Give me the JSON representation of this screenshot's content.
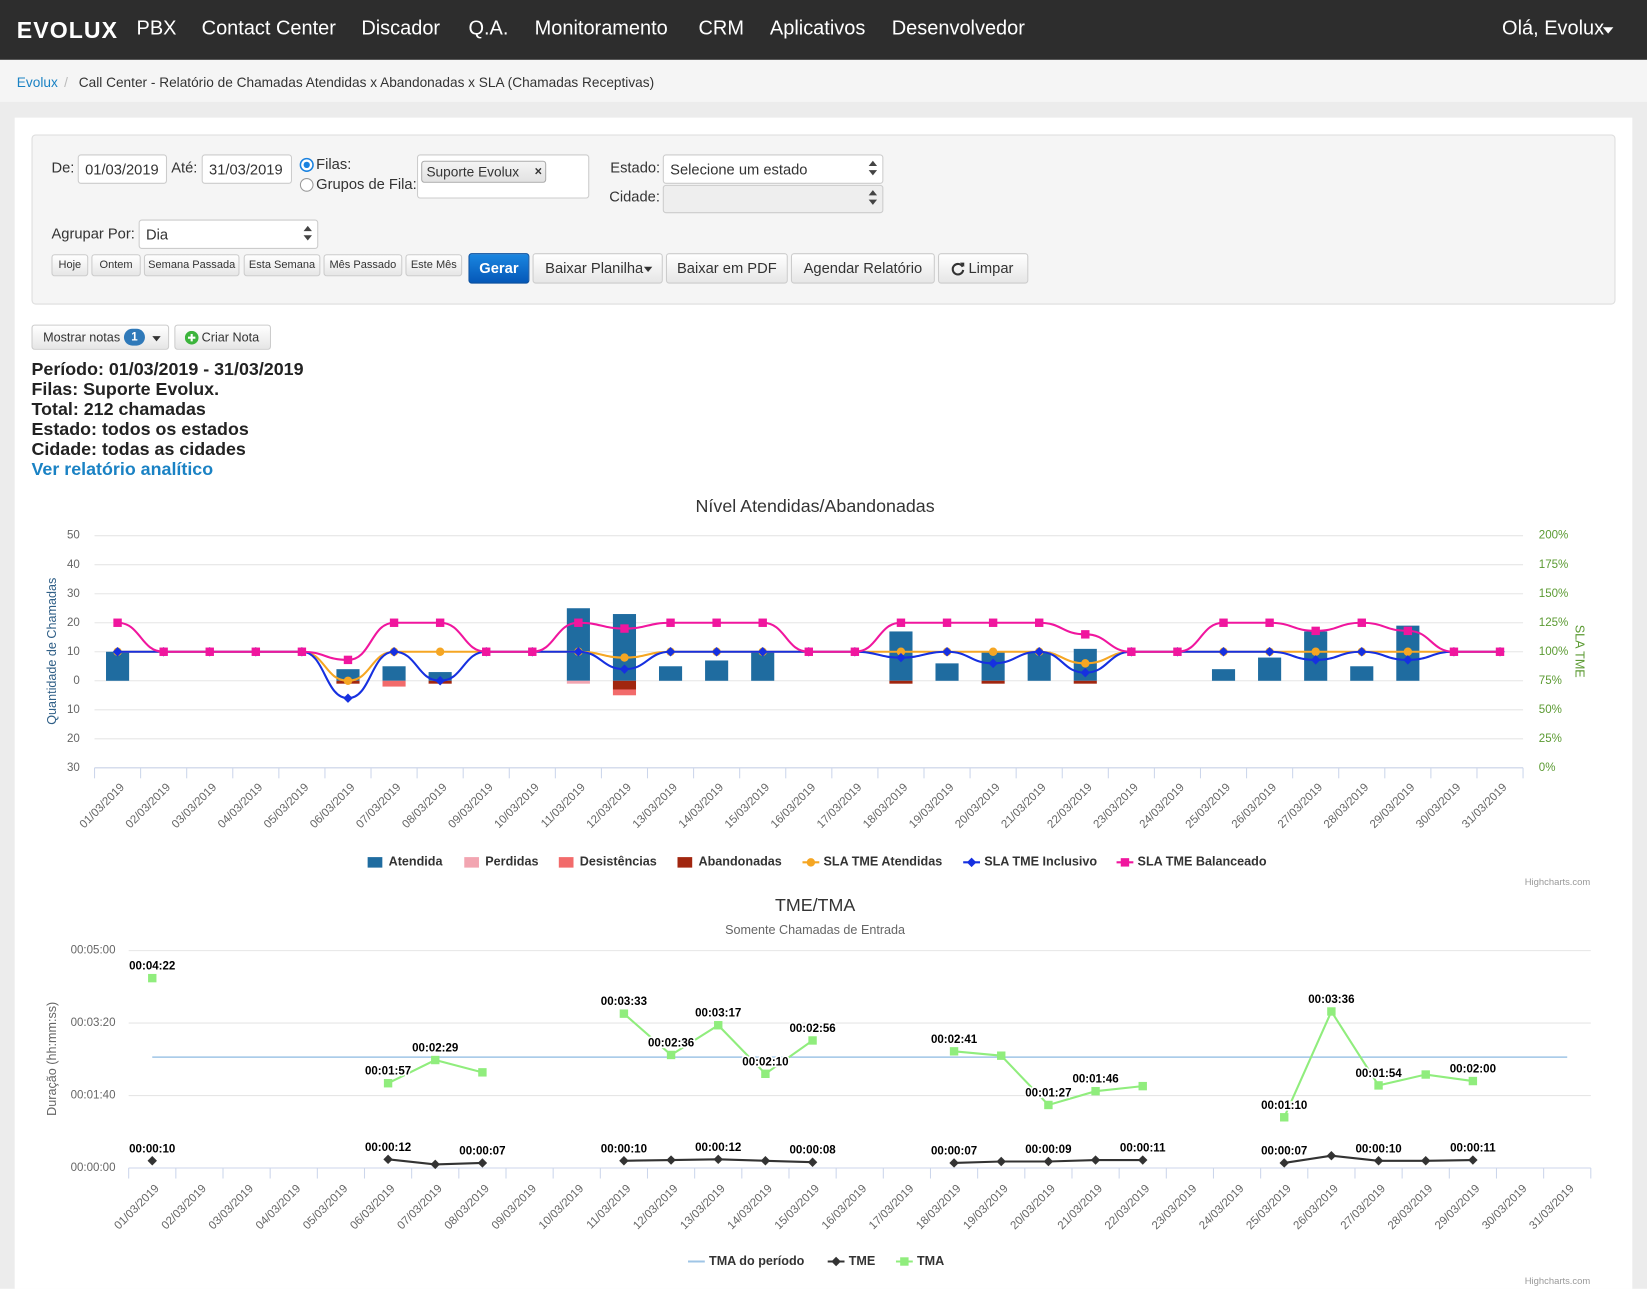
{
  "nav": {
    "logo": "EVOLUX",
    "items": [
      "PBX",
      "Contact Center",
      "Discador",
      "Q.A.",
      "Monitoramento",
      "CRM",
      "Aplicativos",
      "Desenvolvedor"
    ],
    "user": "Olá, Evolux"
  },
  "breadcrumb": {
    "home": "Evolux",
    "separator": "/",
    "current": "Call Center - Relatório de Chamadas Atendidas x Abandonadas x SLA (Chamadas Receptivas)"
  },
  "form": {
    "de_label": "De:",
    "de_value": "01/03/2019",
    "ate_label": "Até:",
    "ate_value": "31/03/2019",
    "filas_label": "Filas:",
    "grupos_label": "Grupos de Fila:",
    "fila_tag": "Suporte Evolux",
    "tag_remove": "×",
    "estado_label": "Estado:",
    "estado_value": "Selecione um estado",
    "cidade_label": "Cidade:",
    "agrupar_label": "Agrupar Por:",
    "agrupar_value": "Dia",
    "quick_buttons": [
      "Hoje",
      "Ontem",
      "Semana Passada",
      "Esta Semana",
      "Mês Passado",
      "Este Mês"
    ],
    "actions": {
      "gerar": "Gerar",
      "baixar_planilha": "Baixar Planilha",
      "baixar_pdf": "Baixar em PDF",
      "agendar": "Agendar Relatório",
      "limpar": "Limpar"
    }
  },
  "notes": {
    "mostrar": "Mostrar notas",
    "count": 1,
    "criar": "Criar Nota"
  },
  "summary": {
    "lines": [
      "Período: 01/03/2019 - 31/03/2019",
      "Filas: Suporte Evolux.",
      "Total: 212 chamadas",
      "Estado: todos os estados",
      "Cidade: todas as cidades"
    ],
    "link": "Ver relatório analítico"
  },
  "chart_data": [
    {
      "type": "combo",
      "title": "Nível Atendidas/Abandonadas",
      "y_title": "Quantidade de Chamadas",
      "y2_title": "SLA TME",
      "credits": "Highcharts.com",
      "grid": true,
      "categories": [
        "01/03/2019",
        "02/03/2019",
        "03/03/2019",
        "04/03/2019",
        "05/03/2019",
        "06/03/2019",
        "07/03/2019",
        "08/03/2019",
        "09/03/2019",
        "10/03/2019",
        "11/03/2019",
        "12/03/2019",
        "13/03/2019",
        "14/03/2019",
        "15/03/2019",
        "16/03/2019",
        "17/03/2019",
        "18/03/2019",
        "19/03/2019",
        "20/03/2019",
        "21/03/2019",
        "22/03/2019",
        "23/03/2019",
        "24/03/2019",
        "25/03/2019",
        "26/03/2019",
        "27/03/2019",
        "28/03/2019",
        "29/03/2019",
        "30/03/2019",
        "31/03/2019"
      ],
      "ylim": [
        -30,
        50
      ],
      "yticks": [
        50,
        40,
        30,
        20,
        10,
        0,
        {
          "value": -10,
          "label": "10"
        },
        {
          "value": -20,
          "label": "20"
        },
        {
          "value": -30,
          "label": "30"
        }
      ],
      "y2lim": [
        0,
        200
      ],
      "y2ticks": [
        {
          "value": 200,
          "label": "200%"
        },
        {
          "value": 175,
          "label": "175%"
        },
        {
          "value": 150,
          "label": "150%"
        },
        {
          "value": 125,
          "label": "125%"
        },
        {
          "value": 100,
          "label": "100%"
        },
        {
          "value": 75,
          "label": "75%"
        },
        {
          "value": 50,
          "label": "50%"
        },
        {
          "value": 25,
          "label": "25%"
        },
        {
          "value": 0,
          "label": "0%"
        }
      ],
      "series": [
        {
          "name": "Atendida",
          "type": "bar",
          "color": "#1f6ca0",
          "values": [
            10,
            0,
            0,
            0,
            0,
            4,
            5,
            3,
            0,
            0,
            25,
            23,
            5,
            7,
            10,
            0,
            0,
            17,
            6,
            10,
            10,
            11,
            0,
            0,
            4,
            8,
            17,
            5,
            19,
            0,
            0
          ]
        },
        {
          "name": "Perdidas",
          "type": "bar",
          "color": "#f2a5b1",
          "values": [
            0,
            0,
            0,
            0,
            0,
            0,
            0,
            0,
            0,
            0,
            -1,
            0,
            0,
            0,
            0,
            0,
            0,
            0,
            0,
            0,
            0,
            0,
            0,
            0,
            0,
            0,
            0,
            0,
            0,
            0,
            0
          ]
        },
        {
          "name": "Desistências",
          "type": "bar",
          "color": "#f26b6b",
          "values": [
            0,
            0,
            0,
            0,
            0,
            0,
            -2,
            0,
            0,
            0,
            0,
            -2,
            0,
            0,
            0,
            0,
            0,
            0,
            0,
            0,
            0,
            0,
            0,
            0,
            0,
            0,
            0,
            0,
            0,
            0,
            0
          ]
        },
        {
          "name": "Abandonadas",
          "type": "bar",
          "color": "#a1260f",
          "values": [
            0,
            0,
            0,
            0,
            0,
            -1,
            0,
            -1,
            0,
            0,
            0,
            -3,
            0,
            0,
            0,
            0,
            0,
            -1,
            0,
            -1,
            0,
            -1,
            0,
            0,
            0,
            0,
            0,
            0,
            0,
            0,
            0
          ]
        },
        {
          "name": "SLA TME Atendidas",
          "type": "line",
          "axis": "y2",
          "marker": "circle",
          "color": "#f5a623",
          "values": [
            100,
            100,
            100,
            100,
            100,
            75,
            100,
            100,
            100,
            100,
            100,
            95,
            100,
            100,
            100,
            100,
            100,
            100,
            100,
            100,
            100,
            90,
            100,
            100,
            100,
            100,
            100,
            100,
            100,
            100,
            100
          ]
        },
        {
          "name": "SLA TME Inclusivo",
          "type": "line",
          "axis": "y2",
          "marker": "diamond",
          "color": "#1630e0",
          "values": [
            100,
            100,
            100,
            100,
            100,
            60,
            100,
            75,
            100,
            100,
            100,
            85,
            100,
            100,
            100,
            100,
            100,
            95,
            100,
            90,
            100,
            82,
            100,
            100,
            100,
            100,
            93,
            100,
            93,
            100,
            100
          ]
        },
        {
          "name": "SLA TME Balanceado",
          "type": "line",
          "axis": "y2",
          "marker": "square",
          "color": "#f0169e",
          "values": [
            125,
            100,
            100,
            100,
            100,
            93,
            125,
            125,
            100,
            100,
            125,
            120,
            125,
            125,
            125,
            100,
            100,
            125,
            125,
            125,
            125,
            115,
            100,
            100,
            125,
            125,
            118,
            125,
            118,
            100,
            100
          ]
        }
      ]
    },
    {
      "type": "line",
      "title": "TME/TMA",
      "subtitle": "Somente Chamadas de Entrada",
      "y_title": "Duração (hh:mm:ss)",
      "credits": "Highcharts.com",
      "grid": true,
      "categories": [
        "01/03/2019",
        "02/03/2019",
        "03/03/2019",
        "04/03/2019",
        "05/03/2019",
        "06/03/2019",
        "07/03/2019",
        "08/03/2019",
        "09/03/2019",
        "10/03/2019",
        "11/03/2019",
        "12/03/2019",
        "13/03/2019",
        "14/03/2019",
        "15/03/2019",
        "16/03/2019",
        "17/03/2019",
        "18/03/2019",
        "19/03/2019",
        "20/03/2019",
        "21/03/2019",
        "22/03/2019",
        "23/03/2019",
        "24/03/2019",
        "25/03/2019",
        "26/03/2019",
        "27/03/2019",
        "28/03/2019",
        "29/03/2019",
        "30/03/2019",
        "31/03/2019"
      ],
      "ylim": [
        0,
        300
      ],
      "yticks": [
        {
          "value": 0,
          "label": "00:00:00"
        },
        {
          "value": 100,
          "label": "00:01:40"
        },
        {
          "value": 200,
          "label": "00:03:20"
        },
        {
          "value": 300,
          "label": "00:05:00"
        }
      ],
      "series": [
        {
          "name": "TMA do período",
          "type": "reference",
          "color": "#9fc5e6",
          "value": 153
        },
        {
          "name": "TME",
          "type": "line",
          "marker": "diamond",
          "color": "#333333",
          "values": [
            10,
            null,
            null,
            null,
            null,
            12,
            5,
            7,
            null,
            null,
            10,
            11,
            12,
            10,
            8,
            null,
            null,
            7,
            9,
            9,
            11,
            11,
            null,
            null,
            7,
            17,
            10,
            10,
            11,
            null,
            null
          ],
          "value_labels": [
            "00:00:10",
            null,
            null,
            null,
            null,
            "00:00:12",
            null,
            "00:00:07",
            null,
            null,
            "00:00:10",
            null,
            "00:00:12",
            null,
            "00:00:08",
            null,
            null,
            "00:00:07",
            null,
            "00:00:09",
            null,
            "00:00:11",
            null,
            null,
            "00:00:07",
            null,
            "00:00:10",
            null,
            "00:00:11",
            null,
            null
          ]
        },
        {
          "name": "TMA",
          "type": "line",
          "marker": "square",
          "color": "#90ed7d",
          "values": [
            262,
            null,
            null,
            null,
            null,
            117,
            149,
            132,
            null,
            null,
            213,
            156,
            197,
            130,
            176,
            null,
            null,
            161,
            155,
            87,
            106,
            113,
            null,
            null,
            70,
            216,
            114,
            129,
            120,
            null,
            null
          ],
          "value_labels": [
            "00:04:22",
            null,
            null,
            null,
            null,
            "00:01:57",
            "00:02:29",
            null,
            null,
            null,
            "00:03:33",
            "00:02:36",
            "00:03:17",
            "00:02:10",
            "00:02:56",
            null,
            null,
            "00:02:41",
            null,
            "00:01:27",
            "00:01:46",
            null,
            null,
            null,
            "00:01:10",
            "00:03:36",
            "00:01:54",
            null,
            "00:02:00",
            null,
            null
          ]
        }
      ]
    }
  ]
}
